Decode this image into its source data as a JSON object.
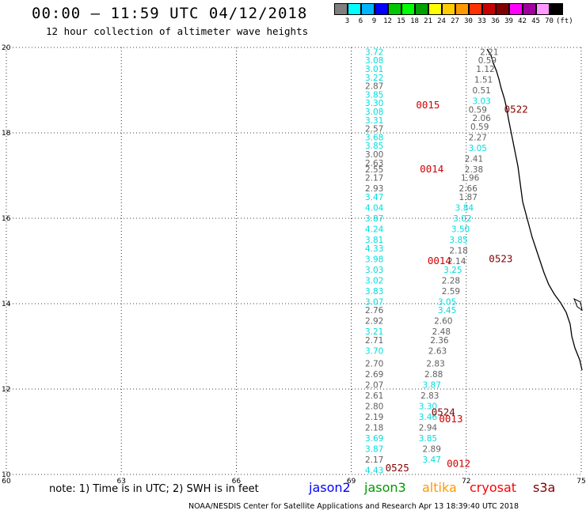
{
  "header": {
    "title": "00:00 – 11:59 UTC 04/12/2018",
    "subtitle": "12 hour collection of altimeter wave heights"
  },
  "legend": {
    "colors": [
      "#7f7f7f",
      "#00ffff",
      "#00b4ff",
      "#0000ff",
      "#00c800",
      "#00ff00",
      "#00a000",
      "#ffff00",
      "#ffcc00",
      "#ff9900",
      "#ff3300",
      "#c80000",
      "#800000",
      "#ff00ff",
      "#a000a0",
      "#ff99ff",
      "#000000"
    ],
    "labels": [
      "3",
      "6",
      "9",
      "12",
      "15",
      "18",
      "21",
      "24",
      "27",
      "30",
      "33",
      "36",
      "39",
      "42",
      "45",
      "70",
      "(ft)"
    ]
  },
  "axes": {
    "lon_ticks": [
      "60",
      "63",
      "66",
      "69",
      "72",
      "75"
    ],
    "lat_ticks": [
      "20",
      "18",
      "16",
      "14",
      "12",
      "10"
    ]
  },
  "chart_data": {
    "type": "scatter",
    "xlim": [
      60,
      75
    ],
    "ylim": [
      10,
      20
    ],
    "grid": true,
    "points": [
      {
        "lon": 69.6,
        "lat": 19.9,
        "v": "3.72",
        "c": "cyan"
      },
      {
        "lon": 69.6,
        "lat": 19.7,
        "v": "3.08",
        "c": "cyan"
      },
      {
        "lon": 69.6,
        "lat": 19.5,
        "v": "3.01",
        "c": "cyan"
      },
      {
        "lon": 69.6,
        "lat": 19.3,
        "v": "3.22",
        "c": "cyan"
      },
      {
        "lon": 69.6,
        "lat": 19.1,
        "v": "2.87",
        "c": "gray"
      },
      {
        "lon": 69.6,
        "lat": 18.9,
        "v": "3.85",
        "c": "cyan"
      },
      {
        "lon": 69.6,
        "lat": 18.7,
        "v": "3.30",
        "c": "cyan"
      },
      {
        "lon": 69.6,
        "lat": 18.5,
        "v": "3.08",
        "c": "cyan"
      },
      {
        "lon": 69.6,
        "lat": 18.3,
        "v": "3.31",
        "c": "cyan"
      },
      {
        "lon": 69.6,
        "lat": 18.1,
        "v": "2.57",
        "c": "gray"
      },
      {
        "lon": 69.6,
        "lat": 17.9,
        "v": "3.68",
        "c": "cyan"
      },
      {
        "lon": 69.6,
        "lat": 17.7,
        "v": "3.85",
        "c": "cyan"
      },
      {
        "lon": 69.6,
        "lat": 17.5,
        "v": "3.00",
        "c": "gray"
      },
      {
        "lon": 69.6,
        "lat": 17.3,
        "v": "2.63",
        "c": "gray"
      },
      {
        "lon": 69.6,
        "lat": 17.15,
        "v": "2.55",
        "c": "gray"
      },
      {
        "lon": 69.6,
        "lat": 16.95,
        "v": "2.17",
        "c": "gray"
      },
      {
        "lon": 69.6,
        "lat": 16.7,
        "v": "2.93",
        "c": "gray"
      },
      {
        "lon": 69.6,
        "lat": 16.5,
        "v": "3.47",
        "c": "cyan"
      },
      {
        "lon": 69.6,
        "lat": 16.25,
        "v": "4.04",
        "c": "cyan"
      },
      {
        "lon": 69.6,
        "lat": 16.0,
        "v": "3.87",
        "c": "cyan"
      },
      {
        "lon": 69.6,
        "lat": 15.75,
        "v": "4.24",
        "c": "cyan"
      },
      {
        "lon": 69.6,
        "lat": 15.5,
        "v": "3.81",
        "c": "cyan"
      },
      {
        "lon": 69.6,
        "lat": 15.3,
        "v": "4.33",
        "c": "cyan"
      },
      {
        "lon": 69.6,
        "lat": 15.05,
        "v": "3.98",
        "c": "cyan"
      },
      {
        "lon": 69.6,
        "lat": 14.8,
        "v": "3.03",
        "c": "cyan"
      },
      {
        "lon": 69.6,
        "lat": 14.55,
        "v": "3.02",
        "c": "cyan"
      },
      {
        "lon": 69.6,
        "lat": 14.3,
        "v": "3.83",
        "c": "cyan"
      },
      {
        "lon": 69.6,
        "lat": 14.05,
        "v": "3.07",
        "c": "cyan"
      },
      {
        "lon": 69.6,
        "lat": 13.85,
        "v": "2.76",
        "c": "gray"
      },
      {
        "lon": 69.6,
        "lat": 13.6,
        "v": "2.92",
        "c": "gray"
      },
      {
        "lon": 69.6,
        "lat": 13.35,
        "v": "3.21",
        "c": "cyan"
      },
      {
        "lon": 69.6,
        "lat": 13.15,
        "v": "2.71",
        "c": "gray"
      },
      {
        "lon": 69.6,
        "lat": 12.9,
        "v": "3.70",
        "c": "cyan"
      },
      {
        "lon": 69.6,
        "lat": 12.6,
        "v": "2.70",
        "c": "gray"
      },
      {
        "lon": 69.6,
        "lat": 12.35,
        "v": "2.69",
        "c": "gray"
      },
      {
        "lon": 69.6,
        "lat": 12.1,
        "v": "2.07",
        "c": "gray"
      },
      {
        "lon": 69.6,
        "lat": 11.85,
        "v": "2.61",
        "c": "gray"
      },
      {
        "lon": 69.6,
        "lat": 11.6,
        "v": "2.80",
        "c": "gray"
      },
      {
        "lon": 69.6,
        "lat": 11.35,
        "v": "2.19",
        "c": "gray"
      },
      {
        "lon": 69.6,
        "lat": 11.1,
        "v": "2.18",
        "c": "gray"
      },
      {
        "lon": 69.6,
        "lat": 10.85,
        "v": "3.69",
        "c": "cyan"
      },
      {
        "lon": 69.6,
        "lat": 10.6,
        "v": "3.87",
        "c": "cyan"
      },
      {
        "lon": 69.6,
        "lat": 10.35,
        "v": "2.17",
        "c": "gray"
      },
      {
        "lon": 69.6,
        "lat": 10.1,
        "v": "4.43",
        "c": "cyan"
      },
      {
        "lon": 72.6,
        "lat": 19.9,
        "v": "2.21",
        "c": "gray"
      },
      {
        "lon": 72.55,
        "lat": 19.7,
        "v": "0.59",
        "c": "gray"
      },
      {
        "lon": 72.5,
        "lat": 19.5,
        "v": "1.12",
        "c": "gray"
      },
      {
        "lon": 72.45,
        "lat": 19.25,
        "v": "1.51",
        "c": "gray"
      },
      {
        "lon": 72.4,
        "lat": 19.0,
        "v": "0.51",
        "c": "gray"
      },
      {
        "lon": 72.4,
        "lat": 18.75,
        "v": "3.03",
        "c": "cyan"
      },
      {
        "lon": 72.3,
        "lat": 18.55,
        "v": "0.59",
        "c": "gray"
      },
      {
        "lon": 72.4,
        "lat": 18.35,
        "v": "2.06",
        "c": "gray"
      },
      {
        "lon": 72.35,
        "lat": 18.15,
        "v": "0.59",
        "c": "gray"
      },
      {
        "lon": 72.3,
        "lat": 17.9,
        "v": "2.27",
        "c": "gray"
      },
      {
        "lon": 72.3,
        "lat": 17.65,
        "v": "3.05",
        "c": "cyan"
      },
      {
        "lon": 72.2,
        "lat": 17.4,
        "v": "2.41",
        "c": "gray"
      },
      {
        "lon": 72.2,
        "lat": 17.15,
        "v": "2.38",
        "c": "gray"
      },
      {
        "lon": 72.1,
        "lat": 16.95,
        "v": "1.96",
        "c": "gray"
      },
      {
        "lon": 72.05,
        "lat": 16.7,
        "v": "2.66",
        "c": "gray"
      },
      {
        "lon": 72.05,
        "lat": 16.5,
        "v": "1.87",
        "c": "gray"
      },
      {
        "lon": 71.95,
        "lat": 16.25,
        "v": "3.84",
        "c": "cyan"
      },
      {
        "lon": 71.9,
        "lat": 16.0,
        "v": "3.02",
        "c": "cyan"
      },
      {
        "lon": 71.85,
        "lat": 15.75,
        "v": "3.50",
        "c": "cyan"
      },
      {
        "lon": 71.8,
        "lat": 15.5,
        "v": "3.85",
        "c": "cyan"
      },
      {
        "lon": 71.8,
        "lat": 15.25,
        "v": "2.18",
        "c": "gray"
      },
      {
        "lon": 71.75,
        "lat": 15.0,
        "v": "2.14",
        "c": "gray"
      },
      {
        "lon": 71.65,
        "lat": 14.8,
        "v": "3.25",
        "c": "cyan"
      },
      {
        "lon": 71.6,
        "lat": 14.55,
        "v": "2.28",
        "c": "gray"
      },
      {
        "lon": 71.6,
        "lat": 14.3,
        "v": "2.59",
        "c": "gray"
      },
      {
        "lon": 71.5,
        "lat": 14.05,
        "v": "3.05",
        "c": "cyan"
      },
      {
        "lon": 71.5,
        "lat": 13.85,
        "v": "3.45",
        "c": "cyan"
      },
      {
        "lon": 71.4,
        "lat": 13.6,
        "v": "2.60",
        "c": "gray"
      },
      {
        "lon": 71.35,
        "lat": 13.35,
        "v": "2.48",
        "c": "gray"
      },
      {
        "lon": 71.3,
        "lat": 13.15,
        "v": "2.36",
        "c": "gray"
      },
      {
        "lon": 71.25,
        "lat": 12.9,
        "v": "2.63",
        "c": "gray"
      },
      {
        "lon": 71.2,
        "lat": 12.6,
        "v": "2.83",
        "c": "gray"
      },
      {
        "lon": 71.15,
        "lat": 12.35,
        "v": "2.88",
        "c": "gray"
      },
      {
        "lon": 71.1,
        "lat": 12.1,
        "v": "3.87",
        "c": "cyan"
      },
      {
        "lon": 71.05,
        "lat": 11.85,
        "v": "2.83",
        "c": "gray"
      },
      {
        "lon": 71.0,
        "lat": 11.6,
        "v": "3.30",
        "c": "cyan"
      },
      {
        "lon": 71.0,
        "lat": 11.35,
        "v": "3.46",
        "c": "cyan"
      },
      {
        "lon": 71.0,
        "lat": 11.1,
        "v": "2.94",
        "c": "gray"
      },
      {
        "lon": 71.0,
        "lat": 10.85,
        "v": "3.85",
        "c": "cyan"
      },
      {
        "lon": 71.1,
        "lat": 10.6,
        "v": "2.89",
        "c": "gray"
      },
      {
        "lon": 71.1,
        "lat": 10.35,
        "v": "3.47",
        "c": "cyan"
      }
    ],
    "time_labels": [
      {
        "lon": 71.0,
        "lat": 18.65,
        "v": "0015",
        "c": "#d00000"
      },
      {
        "lon": 71.1,
        "lat": 17.15,
        "v": "0014",
        "c": "#d00000"
      },
      {
        "lon": 71.3,
        "lat": 15.0,
        "v": "0014",
        "c": "#d00000"
      },
      {
        "lon": 72.9,
        "lat": 15.05,
        "v": "0523",
        "c": "#800000"
      },
      {
        "lon": 73.3,
        "lat": 18.55,
        "v": "0522",
        "c": "#800000"
      },
      {
        "lon": 71.4,
        "lat": 11.45,
        "v": "0524",
        "c": "#800000"
      },
      {
        "lon": 71.6,
        "lat": 11.3,
        "v": "0013",
        "c": "#d00000"
      },
      {
        "lon": 70.2,
        "lat": 10.15,
        "v": "0525",
        "c": "#800000"
      },
      {
        "lon": 71.8,
        "lat": 10.25,
        "v": "0012",
        "c": "#d00000"
      }
    ]
  },
  "footer": {
    "note": "note:  1) Time is in UTC;  2) SWH is in feet",
    "satellites": [
      {
        "name": "jason2",
        "color": "#0000ff"
      },
      {
        "name": "jason3",
        "color": "#009900"
      },
      {
        "name": "altika",
        "color": "#ff9900"
      },
      {
        "name": "cryosat",
        "color": "#ff0000"
      },
      {
        "name": "s3a",
        "color": "#800000"
      }
    ],
    "credit": "NOAA/NESDIS Center for Satellite Applications and Research    Apr 13 18:39:40 UTC 2018"
  }
}
